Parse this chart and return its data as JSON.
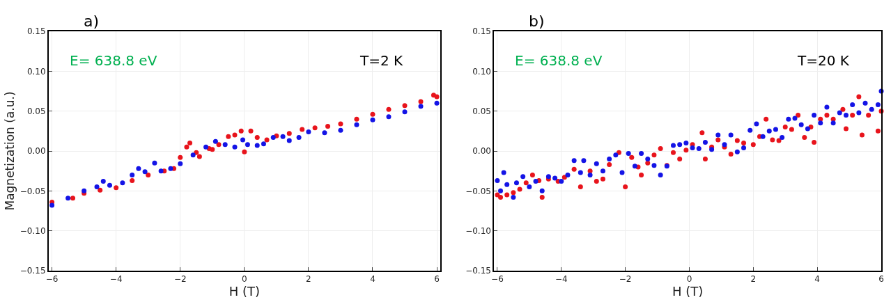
{
  "chart_data": [
    {
      "type": "scatter",
      "title": "a)",
      "xlabel": "H (T)",
      "ylabel": "Magnetization (a.u.)",
      "annotations": [
        "E= 638.8 eV",
        "T=2 K"
      ],
      "xlim": [
        -6.1,
        6.1
      ],
      "ylim": [
        -0.15,
        0.15
      ],
      "xticks": [
        {
          "value": -6,
          "label": "−6"
        },
        {
          "value": -4,
          "label": "−4"
        },
        {
          "value": -2,
          "label": "−2"
        },
        0,
        2,
        4,
        6
      ],
      "yticks": [
        {
          "value": -0.15,
          "label": "−0.15"
        },
        {
          "value": -0.1,
          "label": "−0.10"
        },
        {
          "value": -0.05,
          "label": "−0.05"
        },
        {
          "value": 0,
          "label": "0.00"
        },
        {
          "value": 0.05,
          "label": "0.05"
        },
        {
          "value": 0.1,
          "label": "0.10"
        },
        {
          "value": 0.15,
          "label": "0.15"
        }
      ],
      "grid": true,
      "marker": "circle",
      "series": [
        {
          "color": "#e8141c",
          "x": [
            -6,
            -5.35,
            -5,
            -4.5,
            -4,
            -3.5,
            -3,
            -2.5,
            -2.2,
            -2.0,
            -1.8,
            -1.7,
            -1.5,
            -1.4,
            -1.1,
            -1.0,
            -0.8,
            -0.5,
            -0.3,
            -0.1,
            0,
            0.2,
            0.4,
            0.7,
            1.0,
            1.4,
            1.8,
            2.2,
            2.6,
            3.0,
            3.5,
            4.0,
            4.5,
            5.0,
            5.5,
            5.9,
            6.0
          ],
          "values": [
            -0.064,
            -0.059,
            -0.053,
            -0.049,
            -0.046,
            -0.037,
            -0.03,
            -0.025,
            -0.022,
            -0.008,
            0.005,
            0.01,
            -0.002,
            -0.007,
            0.003,
            0.002,
            0.008,
            0.018,
            0.02,
            0.025,
            -0.001,
            0.025,
            0.017,
            0.014,
            0.019,
            0.022,
            0.027,
            0.029,
            0.031,
            0.034,
            0.04,
            0.046,
            0.052,
            0.057,
            0.062,
            0.07,
            0.068
          ]
        },
        {
          "color": "#1414e6",
          "x": [
            -6,
            -5.5,
            -5,
            -4.6,
            -4.4,
            -4.2,
            -3.8,
            -3.5,
            -3.3,
            -3.1,
            -2.8,
            -2.6,
            -2.3,
            -2.0,
            -1.6,
            -1.2,
            -0.9,
            -0.6,
            -0.3,
            -0.05,
            0.1,
            0.4,
            0.6,
            0.9,
            1.2,
            1.4,
            1.7,
            2.0,
            2.5,
            3.0,
            3.5,
            4.0,
            4.5,
            5.0,
            5.5,
            6.0
          ],
          "values": [
            -0.068,
            -0.059,
            -0.05,
            -0.045,
            -0.038,
            -0.043,
            -0.04,
            -0.03,
            -0.022,
            -0.026,
            -0.015,
            -0.025,
            -0.022,
            -0.016,
            -0.005,
            0.005,
            0.012,
            0.008,
            0.005,
            0.014,
            0.008,
            0.007,
            0.009,
            0.017,
            0.018,
            0.013,
            0.017,
            0.024,
            0.023,
            0.026,
            0.033,
            0.039,
            0.043,
            0.049,
            0.056,
            0.06
          ]
        }
      ]
    },
    {
      "type": "scatter",
      "title": "b)",
      "xlabel": "H (T)",
      "annotations": [
        "E= 638.8 eV",
        "T=20 K"
      ],
      "xlim": [
        -6.1,
        6.0
      ],
      "ylim": [
        -0.15,
        0.15
      ],
      "xticks": [
        {
          "value": -6,
          "label": "−6"
        },
        {
          "value": -4,
          "label": "−4"
        },
        {
          "value": -2,
          "label": "−2"
        },
        0,
        2,
        4,
        6
      ],
      "yticks": [
        {
          "value": -0.15,
          "label": "−0.15"
        },
        {
          "value": -0.1,
          "label": "−0.10"
        },
        {
          "value": -0.05,
          "label": "−0.05"
        },
        {
          "value": 0,
          "label": "0.00"
        },
        {
          "value": 0.05,
          "label": "0.05"
        },
        {
          "value": 0.1,
          "label": "0.10"
        },
        {
          "value": 0.15,
          "label": "0.15"
        }
      ],
      "grid": true,
      "marker": "circle",
      "series": [
        {
          "color": "#e8141c",
          "x": [
            -6,
            -5.9,
            -5.7,
            -5.5,
            -5.3,
            -5.1,
            -4.9,
            -4.7,
            -4.6,
            -4.4,
            -4.1,
            -3.9,
            -3.6,
            -3.4,
            -3.1,
            -2.9,
            -2.7,
            -2.5,
            -2.2,
            -2.0,
            -1.8,
            -1.6,
            -1.5,
            -1.3,
            -1.1,
            -0.9,
            -0.7,
            -0.5,
            -0.3,
            -0.1,
            0.1,
            0.4,
            0.5,
            0.7,
            0.9,
            1.1,
            1.3,
            1.5,
            1.7,
            2.0,
            2.2,
            2.4,
            2.6,
            2.8,
            3.0,
            3.2,
            3.4,
            3.6,
            3.8,
            3.9,
            4.1,
            4.3,
            4.5,
            4.8,
            4.9,
            5.1,
            5.3,
            5.4,
            5.6,
            5.9,
            6.0
          ],
          "values": [
            -0.055,
            -0.058,
            -0.055,
            -0.052,
            -0.048,
            -0.04,
            -0.03,
            -0.037,
            -0.058,
            -0.035,
            -0.038,
            -0.033,
            -0.023,
            -0.045,
            -0.025,
            -0.038,
            -0.035,
            -0.017,
            -0.002,
            -0.045,
            -0.008,
            -0.02,
            -0.03,
            -0.015,
            -0.005,
            0.003,
            -0.018,
            -0.002,
            -0.01,
            0.001,
            0.008,
            0.023,
            -0.01,
            0.005,
            0.014,
            0.005,
            -0.004,
            0.013,
            0.01,
            0.008,
            0.018,
            0.04,
            0.014,
            0.013,
            0.03,
            0.027,
            0.045,
            0.017,
            0.03,
            0.011,
            0.04,
            0.045,
            0.04,
            0.052,
            0.028,
            0.045,
            0.068,
            0.02,
            0.045,
            0.025,
            0.05
          ]
        },
        {
          "color": "#1414e6",
          "x": [
            -6,
            -5.9,
            -5.8,
            -5.7,
            -5.5,
            -5.4,
            -5.2,
            -5.0,
            -4.8,
            -4.6,
            -4.4,
            -4.2,
            -4.0,
            -3.8,
            -3.6,
            -3.4,
            -3.3,
            -3.1,
            -2.9,
            -2.7,
            -2.5,
            -2.3,
            -2.1,
            -1.9,
            -1.7,
            -1.5,
            -1.3,
            -1.1,
            -0.9,
            -0.7,
            -0.5,
            -0.3,
            -0.1,
            0.1,
            0.3,
            0.5,
            0.7,
            0.9,
            1.1,
            1.3,
            1.5,
            1.7,
            1.9,
            2.1,
            2.3,
            2.5,
            2.7,
            2.9,
            3.1,
            3.3,
            3.5,
            3.7,
            3.9,
            4.1,
            4.3,
            4.5,
            4.7,
            4.9,
            5.1,
            5.3,
            5.5,
            5.7,
            5.9,
            6.0
          ],
          "values": [
            -0.037,
            -0.05,
            -0.027,
            -0.042,
            -0.058,
            -0.04,
            -0.032,
            -0.045,
            -0.038,
            -0.05,
            -0.032,
            -0.034,
            -0.038,
            -0.03,
            -0.012,
            -0.027,
            -0.012,
            -0.03,
            -0.016,
            -0.025,
            -0.01,
            -0.005,
            -0.027,
            -0.003,
            -0.019,
            -0.003,
            -0.01,
            -0.018,
            -0.03,
            -0.019,
            0.007,
            0.008,
            0.01,
            0.004,
            0.003,
            0.011,
            0.002,
            0.02,
            0.008,
            0.02,
            -0.001,
            0.004,
            0.026,
            0.034,
            0.018,
            0.025,
            0.027,
            0.017,
            0.04,
            0.041,
            0.033,
            0.028,
            0.045,
            0.035,
            0.055,
            0.035,
            0.048,
            0.045,
            0.058,
            0.048,
            0.06,
            0.052,
            0.058,
            0.075
          ]
        }
      ]
    }
  ]
}
